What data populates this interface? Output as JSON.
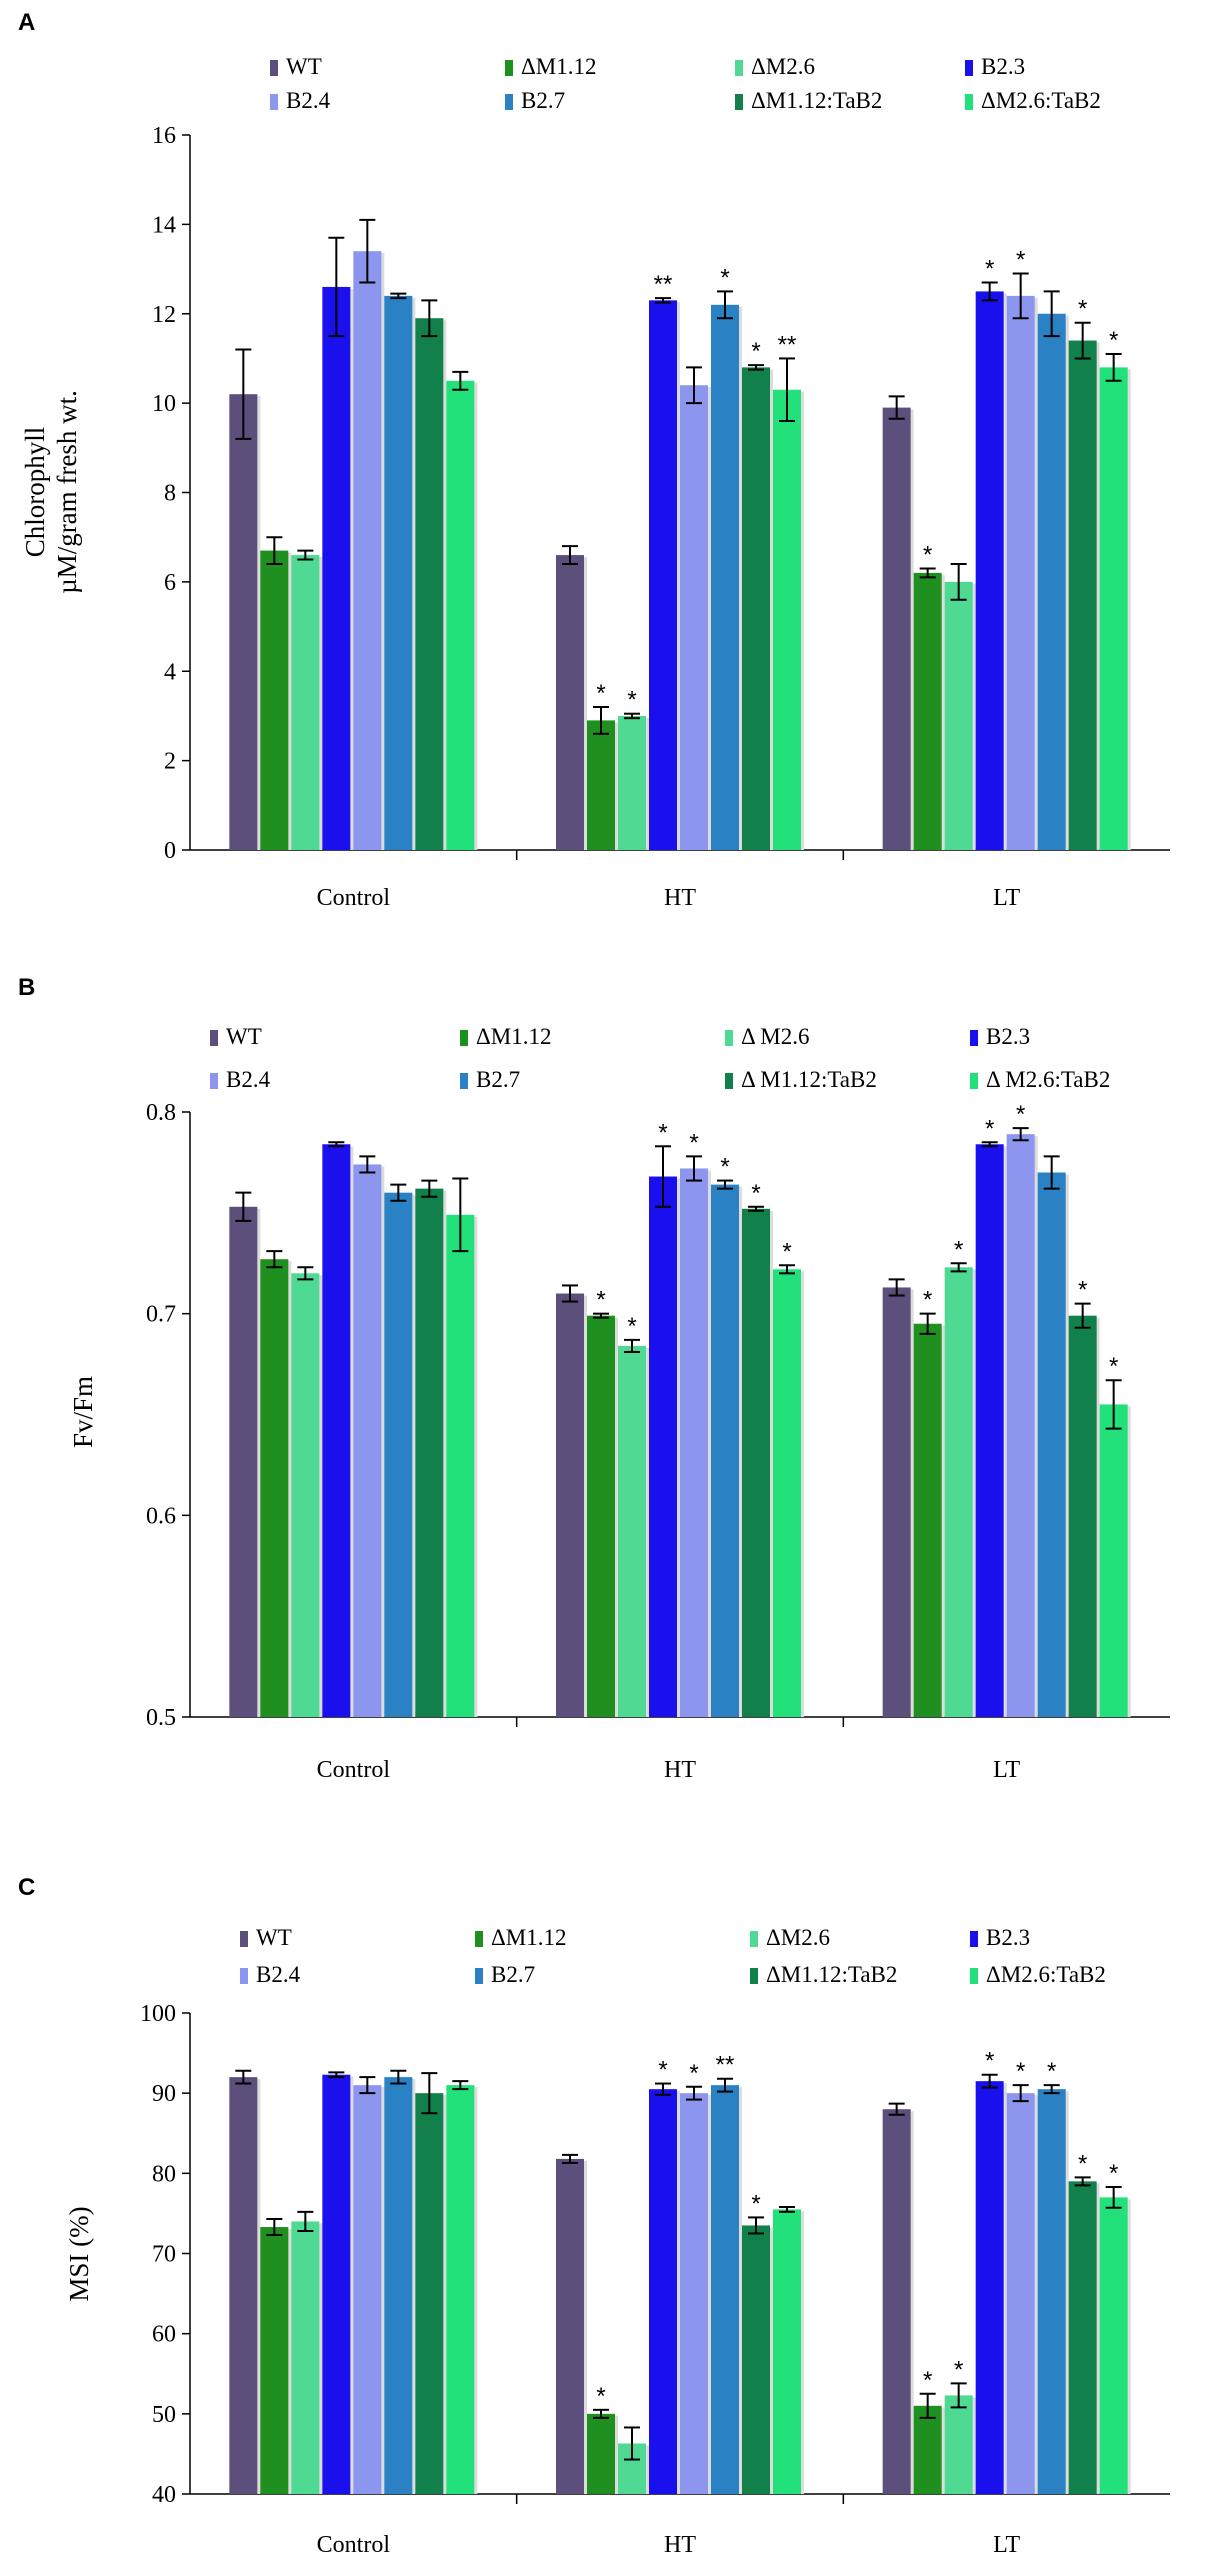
{
  "colors": {
    "WT": "#5d4f7c",
    "M112": "#1f8f1f",
    "M26": "#4fd993",
    "B23": "#1a10ee",
    "B24": "#8c96ee",
    "B27": "#2a82c4",
    "M112TaB2": "#11804a",
    "M26TaB2": "#22e07a"
  },
  "chart_data": [
    {
      "type": "bar",
      "panel": "A",
      "title": "",
      "ylabel_line1": "Chlorophyll",
      "ylabel_line2": "µM/gram fresh wt.",
      "xlabel": "",
      "ylim": [
        0,
        16
      ],
      "yticks": [
        "0",
        "2",
        "4",
        "6",
        "8",
        "10",
        "12",
        "14",
        "16"
      ],
      "categories": [
        "Control",
        "HT",
        "LT"
      ],
      "series": [
        {
          "name": "WT",
          "values": [
            10.2,
            6.6,
            9.9
          ],
          "errors": [
            1.0,
            0.2,
            0.25
          ],
          "stars": [
            "",
            "",
            ""
          ]
        },
        {
          "name": "ΔM1.12",
          "values": [
            6.7,
            2.9,
            6.2
          ],
          "errors": [
            0.3,
            0.3,
            0.1
          ],
          "stars": [
            "",
            "*",
            "*"
          ]
        },
        {
          "name": "ΔM2.6",
          "values": [
            6.6,
            3.0,
            6.0
          ],
          "errors": [
            0.1,
            0.05,
            0.4
          ],
          "stars": [
            "",
            "*",
            ""
          ]
        },
        {
          "name": "B2.3",
          "values": [
            12.6,
            12.3,
            12.5
          ],
          "errors": [
            1.1,
            0.05,
            0.2
          ],
          "stars": [
            "",
            "**",
            "*"
          ]
        },
        {
          "name": "B2.4",
          "values": [
            13.4,
            10.4,
            12.4
          ],
          "errors": [
            0.7,
            0.4,
            0.5
          ],
          "stars": [
            "",
            "",
            "*"
          ]
        },
        {
          "name": "B2.7",
          "values": [
            12.4,
            12.2,
            12.0
          ],
          "errors": [
            0.05,
            0.3,
            0.5
          ],
          "stars": [
            "",
            "*",
            ""
          ]
        },
        {
          "name": "ΔM1.12:TaB2",
          "values": [
            11.9,
            10.8,
            11.4
          ],
          "errors": [
            0.4,
            0.05,
            0.4
          ],
          "stars": [
            "",
            "*",
            "*"
          ]
        },
        {
          "name": "ΔM2.6:TaB2",
          "values": [
            10.5,
            10.3,
            10.8
          ],
          "errors": [
            0.2,
            0.7,
            0.3
          ],
          "stars": [
            "",
            "**",
            "*"
          ]
        }
      ]
    },
    {
      "type": "bar",
      "panel": "B",
      "title": "",
      "ylabel": "Fv/Fm",
      "xlabel": "",
      "ylim": [
        0.5,
        0.8
      ],
      "yticks": [
        "0.5",
        "0.6",
        "0.7",
        "0.8"
      ],
      "categories": [
        "Control",
        "HT",
        "LT"
      ],
      "series": [
        {
          "name": "WT",
          "values": [
            0.753,
            0.71,
            0.713
          ],
          "errors": [
            0.007,
            0.004,
            0.004
          ],
          "stars": [
            "",
            "",
            ""
          ]
        },
        {
          "name": "ΔM1.12",
          "values": [
            0.727,
            0.699,
            0.695
          ],
          "errors": [
            0.004,
            0.001,
            0.005
          ],
          "stars": [
            "",
            "*",
            "*"
          ]
        },
        {
          "name": "Δ M2.6",
          "values": [
            0.72,
            0.684,
            0.723
          ],
          "errors": [
            0.003,
            0.003,
            0.002
          ],
          "stars": [
            "",
            "*",
            "*"
          ]
        },
        {
          "name": "B2.3",
          "values": [
            0.784,
            0.768,
            0.784
          ],
          "errors": [
            0.001,
            0.015,
            0.001
          ],
          "stars": [
            "",
            "*",
            "*"
          ]
        },
        {
          "name": "B2.4",
          "values": [
            0.774,
            0.772,
            0.789
          ],
          "errors": [
            0.004,
            0.006,
            0.003
          ],
          "stars": [
            "",
            "*",
            "*"
          ]
        },
        {
          "name": "B2.7",
          "values": [
            0.76,
            0.764,
            0.77
          ],
          "errors": [
            0.004,
            0.002,
            0.008
          ],
          "stars": [
            "",
            "*",
            ""
          ]
        },
        {
          "name": "Δ M1.12:TaB2",
          "values": [
            0.762,
            0.752,
            0.699
          ],
          "errors": [
            0.004,
            0.001,
            0.006
          ],
          "stars": [
            "",
            "*",
            "*"
          ]
        },
        {
          "name": "Δ M2.6:TaB2",
          "values": [
            0.749,
            0.722,
            0.655
          ],
          "errors": [
            0.018,
            0.002,
            0.012
          ],
          "stars": [
            "",
            "*",
            "*"
          ]
        }
      ]
    },
    {
      "type": "bar",
      "panel": "C",
      "title": "",
      "ylabel": "MSI (%)",
      "xlabel": "",
      "ylim": [
        40,
        100
      ],
      "yticks": [
        "40",
        "50",
        "60",
        "70",
        "80",
        "90",
        "100"
      ],
      "categories": [
        "Control",
        "HT",
        "LT"
      ],
      "series": [
        {
          "name": "WT",
          "values": [
            92.0,
            81.8,
            88.0
          ],
          "errors": [
            0.8,
            0.5,
            0.7
          ],
          "stars": [
            "",
            "",
            ""
          ]
        },
        {
          "name": "ΔM1.12",
          "values": [
            73.3,
            50.0,
            51.0
          ],
          "errors": [
            1.0,
            0.5,
            1.5
          ],
          "stars": [
            "",
            "*",
            "*"
          ]
        },
        {
          "name": "ΔM2.6",
          "values": [
            74.0,
            46.3,
            52.3
          ],
          "errors": [
            1.2,
            2.0,
            1.5
          ],
          "stars": [
            "",
            "",
            "*"
          ]
        },
        {
          "name": "B2.3",
          "values": [
            92.3,
            90.5,
            91.5
          ],
          "errors": [
            0.3,
            0.7,
            0.8
          ],
          "stars": [
            "",
            "*",
            "*"
          ]
        },
        {
          "name": "B2.4",
          "values": [
            91.0,
            90.0,
            90.0
          ],
          "errors": [
            1.0,
            0.8,
            1.0
          ],
          "stars": [
            "",
            "*",
            "*"
          ]
        },
        {
          "name": "B2.7",
          "values": [
            92.0,
            91.0,
            90.5
          ],
          "errors": [
            0.8,
            0.8,
            0.5
          ],
          "stars": [
            "",
            "**",
            "*"
          ]
        },
        {
          "name": "ΔM1.12:TaB2",
          "values": [
            90.0,
            73.5,
            79.0
          ],
          "errors": [
            2.5,
            1.0,
            0.5
          ],
          "stars": [
            "",
            "*",
            "*"
          ]
        },
        {
          "name": "ΔM2.6:TaB2",
          "values": [
            91.0,
            75.5,
            77.0
          ],
          "errors": [
            0.5,
            0.3,
            1.3
          ],
          "stars": [
            "",
            "",
            "*"
          ]
        }
      ]
    }
  ]
}
